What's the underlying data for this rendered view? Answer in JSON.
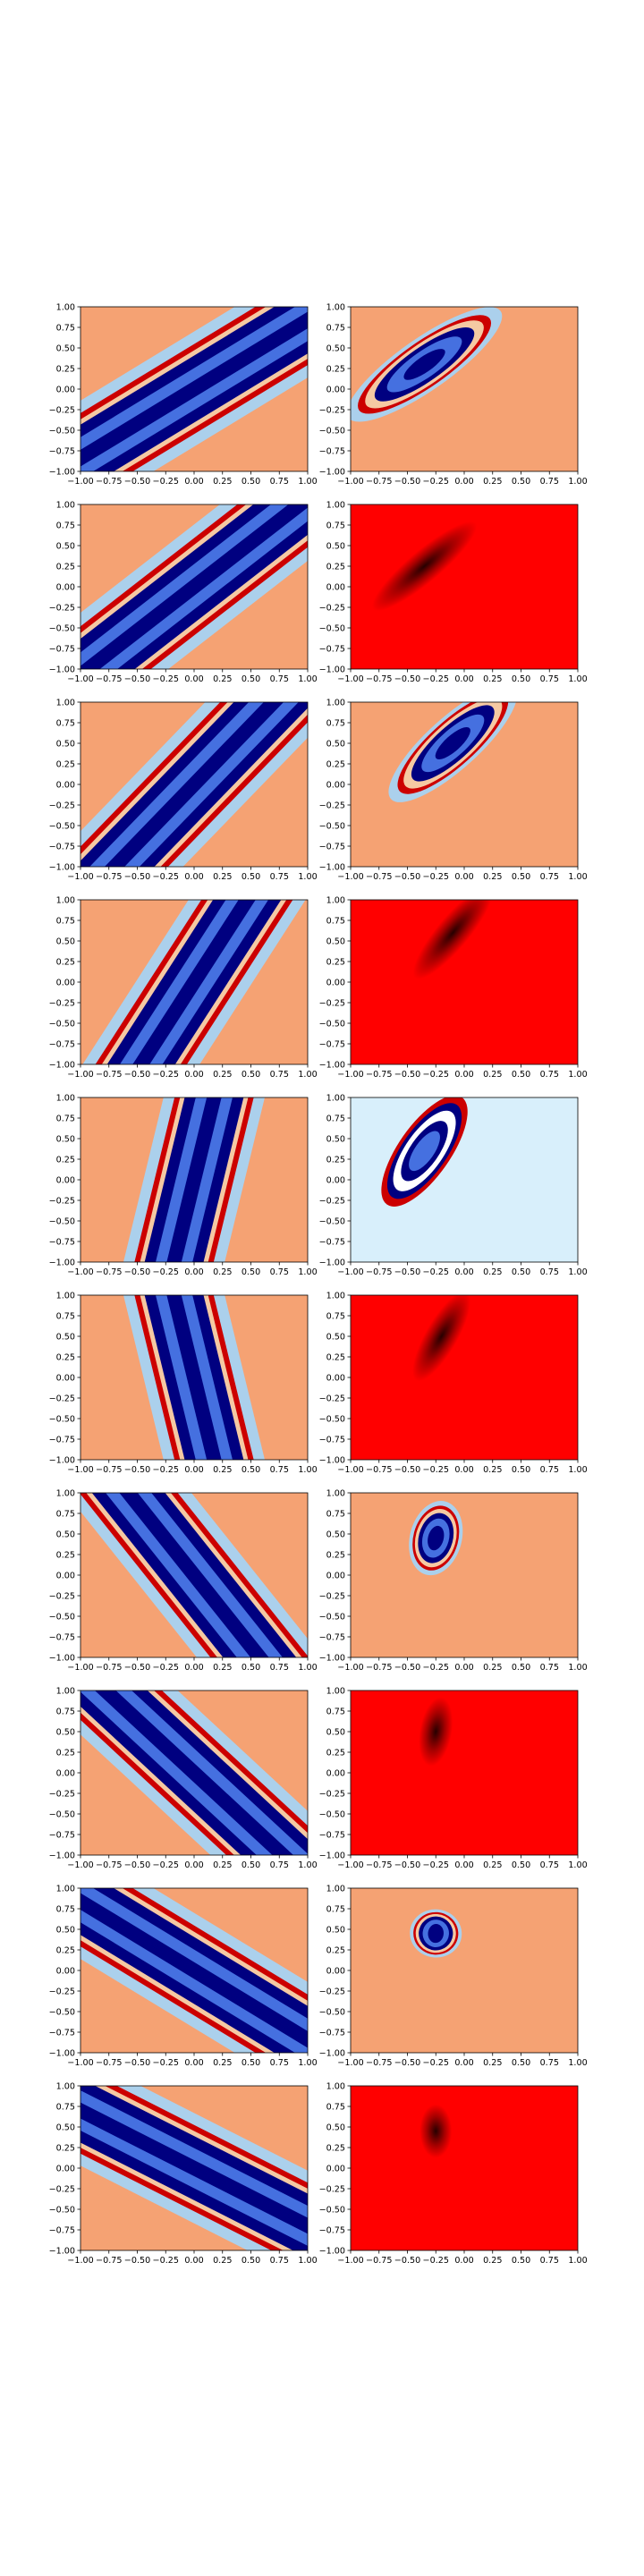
{
  "figure": {
    "background": "#ffffff",
    "rows": 10,
    "cols": 2,
    "colors": {
      "frame": "#000000",
      "text": "#000000",
      "contour_bands": [
        "#f5a273",
        "#abd0ec",
        "#4570e0",
        "#000080",
        "#cc0000",
        "#f5c9a3",
        "#ffffff",
        "#d8effb"
      ],
      "heat_background": "#ff0000",
      "heat_peak": "#000000"
    }
  },
  "chart_data": [
    {
      "panel": "r1-left",
      "type": "heatmap",
      "style": "contour_bands",
      "surface": "ridge",
      "orientation_deg": 40,
      "x": {
        "ticks": [
          "−1.00",
          "−0.75",
          "−0.50",
          "−0.25",
          "0.00",
          "0.25",
          "0.50",
          "0.75",
          "1.00"
        ],
        "lim": [
          -1,
          1
        ]
      },
      "y": {
        "ticks": [
          "−1.00",
          "−0.75",
          "−0.50",
          "−0.25",
          "0.00",
          "0.25",
          "0.50",
          "0.75",
          "1.00"
        ],
        "lim": [
          -1,
          1
        ]
      }
    },
    {
      "panel": "r1-right",
      "type": "heatmap",
      "style": "contour_bands",
      "surface": "gaussian_ellipse",
      "center": [
        -0.35,
        0.3
      ],
      "orientation_deg": 35,
      "x": {
        "ticks": [
          "−1.00",
          "−0.75",
          "−0.50",
          "−0.25",
          "0.00",
          "0.25",
          "0.50",
          "0.75",
          "1.00"
        ],
        "lim": [
          -1,
          1
        ]
      },
      "y": {
        "ticks": [
          "−1.00",
          "−0.75",
          "−0.50",
          "−0.25",
          "0.00",
          "0.25",
          "0.50",
          "0.75",
          "1.00"
        ],
        "lim": [
          -1,
          1
        ]
      }
    },
    {
      "panel": "r2-left",
      "type": "heatmap",
      "style": "contour_bands",
      "surface": "ridge",
      "orientation_deg": 47,
      "x": {
        "ticks": [
          "−1.00",
          "−0.75",
          "−0.50",
          "−0.25",
          "0.00",
          "0.25",
          "0.50",
          "0.75",
          "1.00"
        ],
        "lim": [
          -1,
          1
        ]
      },
      "y": {
        "ticks": [
          "−1.00",
          "−0.75",
          "−0.50",
          "−0.25",
          "0.00",
          "0.25",
          "0.50",
          "0.75",
          "1.00"
        ],
        "lim": [
          -1,
          1
        ]
      }
    },
    {
      "panel": "r2-right",
      "type": "heatmap",
      "style": "red_density",
      "surface": "gaussian_ellipse",
      "center": [
        -0.35,
        0.25
      ],
      "orientation_deg": 40,
      "x": {
        "ticks": [
          "−1.00",
          "−0.75",
          "−0.50",
          "−0.25",
          "0.00",
          "0.25",
          "0.50",
          "0.75",
          "1.00"
        ],
        "lim": [
          -1,
          1
        ]
      },
      "y": {
        "ticks": [
          "−1.00",
          "−0.75",
          "−0.50",
          "−0.25",
          "0.00",
          "0.25",
          "0.50",
          "0.75",
          "1.00"
        ],
        "lim": [
          -1,
          1
        ]
      }
    },
    {
      "panel": "r3-left",
      "type": "heatmap",
      "style": "contour_bands",
      "surface": "ridge",
      "orientation_deg": 55,
      "x": {
        "ticks": [
          "−1.00",
          "−0.75",
          "−0.50",
          "−0.25",
          "0.00",
          "0.25",
          "0.50",
          "0.75",
          "1.00"
        ],
        "lim": [
          -1,
          1
        ]
      },
      "y": {
        "ticks": [
          "−1.00",
          "−0.75",
          "−0.50",
          "−0.25",
          "0.00",
          "0.25",
          "0.50",
          "0.75",
          "1.00"
        ],
        "lim": [
          -1,
          1
        ]
      }
    },
    {
      "panel": "r3-right",
      "type": "heatmap",
      "style": "contour_bands",
      "surface": "gaussian_ellipse",
      "center": [
        -0.1,
        0.5
      ],
      "orientation_deg": 42,
      "x": {
        "ticks": [
          "−1.00",
          "−0.75",
          "−0.50",
          "−0.25",
          "0.00",
          "0.25",
          "0.50",
          "0.75",
          "1.00"
        ],
        "lim": [
          -1,
          1
        ]
      },
      "y": {
        "ticks": [
          "−1.00",
          "−0.75",
          "−0.50",
          "−0.25",
          "0.00",
          "0.25",
          "0.50",
          "0.75",
          "1.00"
        ],
        "lim": [
          -1,
          1
        ]
      }
    },
    {
      "panel": "r4-left",
      "type": "heatmap",
      "style": "contour_bands",
      "surface": "ridge",
      "orientation_deg": 65,
      "x": {
        "ticks": [
          "−1.00",
          "−0.75",
          "−0.50",
          "−0.25",
          "0.00",
          "0.25",
          "0.50",
          "0.75",
          "1.00"
        ],
        "lim": [
          -1,
          1
        ]
      },
      "y": {
        "ticks": [
          "−1.00",
          "−0.75",
          "−0.50",
          "−0.25",
          "0.00",
          "0.25",
          "0.50",
          "0.75",
          "1.00"
        ],
        "lim": [
          -1,
          1
        ]
      }
    },
    {
      "panel": "r4-right",
      "type": "heatmap",
      "style": "red_density",
      "surface": "gaussian_ellipse",
      "center": [
        -0.1,
        0.6
      ],
      "orientation_deg": 50,
      "x": {
        "ticks": [
          "−1.00",
          "−0.75",
          "−0.50",
          "−0.25",
          "0.00",
          "0.25",
          "0.50",
          "0.75",
          "1.00"
        ],
        "lim": [
          -1,
          1
        ]
      },
      "y": {
        "ticks": [
          "−1.00",
          "−0.75",
          "−0.50",
          "−0.25",
          "0.00",
          "0.25",
          "0.50",
          "0.75",
          "1.00"
        ],
        "lim": [
          -1,
          1
        ]
      }
    },
    {
      "panel": "r5-left",
      "type": "heatmap",
      "style": "contour_bands",
      "surface": "ridge",
      "orientation_deg": 80,
      "x": {
        "ticks": [
          "−1.00",
          "−0.75",
          "−0.50",
          "−0.25",
          "0.00",
          "0.25",
          "0.50",
          "0.75",
          "1.00"
        ],
        "lim": [
          -1,
          1
        ]
      },
      "y": {
        "ticks": [
          "−1.00",
          "−0.75",
          "−0.50",
          "−0.25",
          "0.00",
          "0.25",
          "0.50",
          "0.75",
          "1.00"
        ],
        "lim": [
          -1,
          1
        ]
      }
    },
    {
      "panel": "r5-right",
      "type": "heatmap",
      "style": "contour_bands_light",
      "surface": "gaussian_ellipse",
      "center": [
        -0.35,
        0.35
      ],
      "orientation_deg": 55,
      "x": {
        "ticks": [
          "−1.00",
          "−0.75",
          "−0.50",
          "−0.25",
          "0.00",
          "0.25",
          "0.50",
          "0.75",
          "1.00"
        ],
        "lim": [
          -1,
          1
        ]
      },
      "y": {
        "ticks": [
          "−1.00",
          "−0.75",
          "−0.50",
          "−0.25",
          "0.00",
          "0.25",
          "0.50",
          "0.75",
          "1.00"
        ],
        "lim": [
          -1,
          1
        ]
      }
    },
    {
      "panel": "r6-left",
      "type": "heatmap",
      "style": "contour_bands",
      "surface": "ridge",
      "orientation_deg": 100,
      "x": {
        "ticks": [
          "−1.00",
          "−0.75",
          "−0.50",
          "−0.25",
          "0.00",
          "0.25",
          "0.50",
          "0.75",
          "1.00"
        ],
        "lim": [
          -1,
          1
        ]
      },
      "y": {
        "ticks": [
          "−1.00",
          "−0.75",
          "−0.50",
          "−0.25",
          "0.00",
          "0.25",
          "0.50",
          "0.75",
          "1.00"
        ],
        "lim": [
          -1,
          1
        ]
      }
    },
    {
      "panel": "r6-right",
      "type": "heatmap",
      "style": "red_density",
      "surface": "gaussian_ellipse",
      "center": [
        -0.2,
        0.5
      ],
      "orientation_deg": 60,
      "x": {
        "ticks": [
          "−1.00",
          "−0.75",
          "−0.50",
          "−0.25",
          "0.00",
          "0.25",
          "0.50",
          "0.75",
          "1.00"
        ],
        "lim": [
          -1,
          1
        ]
      },
      "y": {
        "ticks": [
          "−1.00",
          "−0.75",
          "−0.50",
          "−0.25",
          "0.00",
          "0.25",
          "0.50",
          "0.75",
          "1.00"
        ],
        "lim": [
          -1,
          1
        ]
      }
    },
    {
      "panel": "r7-left",
      "type": "heatmap",
      "style": "contour_bands",
      "surface": "ridge",
      "orientation_deg": 120,
      "x": {
        "ticks": [
          "−1.00",
          "−0.75",
          "−0.50",
          "−0.25",
          "0.00",
          "0.25",
          "0.50",
          "0.75",
          "1.00"
        ],
        "lim": [
          -1,
          1
        ]
      },
      "y": {
        "ticks": [
          "−1.00",
          "−0.75",
          "−0.50",
          "−0.25",
          "0.00",
          "0.25",
          "0.50",
          "0.75",
          "1.00"
        ],
        "lim": [
          -1,
          1
        ]
      }
    },
    {
      "panel": "r7-right",
      "type": "heatmap",
      "style": "contour_bands",
      "surface": "gaussian_ellipse",
      "center": [
        -0.25,
        0.45
      ],
      "orientation_deg": 75,
      "x": {
        "ticks": [
          "−1.00",
          "−0.75",
          "−0.50",
          "−0.25",
          "0.00",
          "0.25",
          "0.50",
          "0.75",
          "1.00"
        ],
        "lim": [
          -1,
          1
        ]
      },
      "y": {
        "ticks": [
          "−1.00",
          "−0.75",
          "−0.50",
          "−0.25",
          "0.00",
          "0.25",
          "0.50",
          "0.75",
          "1.00"
        ],
        "lim": [
          -1,
          1
        ]
      }
    },
    {
      "panel": "r8-left",
      "type": "heatmap",
      "style": "contour_bands",
      "surface": "ridge",
      "orientation_deg": 128,
      "x": {
        "ticks": [
          "−1.00",
          "−0.75",
          "−0.50",
          "−0.25",
          "0.00",
          "0.25",
          "0.50",
          "0.75",
          "1.00"
        ],
        "lim": [
          -1,
          1
        ]
      },
      "y": {
        "ticks": [
          "−1.00",
          "−0.75",
          "−0.50",
          "−0.25",
          "0.00",
          "0.25",
          "0.50",
          "0.75",
          "1.00"
        ],
        "lim": [
          -1,
          1
        ]
      }
    },
    {
      "panel": "r8-right",
      "type": "heatmap",
      "style": "red_density",
      "surface": "gaussian_ellipse",
      "center": [
        -0.25,
        0.5
      ],
      "orientation_deg": 80,
      "x": {
        "ticks": [
          "−1.00",
          "−0.75",
          "−0.50",
          "−0.25",
          "0.00",
          "0.25",
          "0.50",
          "0.75",
          "1.00"
        ],
        "lim": [
          -1,
          1
        ]
      },
      "y": {
        "ticks": [
          "−1.00",
          "−0.75",
          "−0.50",
          "−0.25",
          "0.00",
          "0.25",
          "0.50",
          "0.75",
          "1.00"
        ],
        "lim": [
          -1,
          1
        ]
      }
    },
    {
      "panel": "r9-left",
      "type": "heatmap",
      "style": "contour_bands",
      "surface": "ridge",
      "orientation_deg": 140,
      "x": {
        "ticks": [
          "−1.00",
          "−0.75",
          "−0.50",
          "−0.25",
          "0.00",
          "0.25",
          "0.50",
          "0.75",
          "1.00"
        ],
        "lim": [
          -1,
          1
        ]
      },
      "y": {
        "ticks": [
          "−1.00",
          "−0.75",
          "−0.50",
          "−0.25",
          "0.00",
          "0.25",
          "0.50",
          "0.75",
          "1.00"
        ],
        "lim": [
          -1,
          1
        ]
      }
    },
    {
      "panel": "r9-right",
      "type": "heatmap",
      "style": "contour_bands",
      "surface": "gaussian_ellipse",
      "center": [
        -0.25,
        0.45
      ],
      "orientation_deg": 85,
      "x": {
        "ticks": [
          "−1.00",
          "−0.75",
          "−0.50",
          "−0.25",
          "0.00",
          "0.25",
          "0.50",
          "0.75",
          "1.00"
        ],
        "lim": [
          -1,
          1
        ]
      },
      "y": {
        "ticks": [
          "−1.00",
          "−0.75",
          "−0.50",
          "−0.25",
          "0.00",
          "0.25",
          "0.50",
          "0.75",
          "1.00"
        ],
        "lim": [
          -1,
          1
        ]
      }
    },
    {
      "panel": "r10-left",
      "type": "heatmap",
      "style": "contour_bands",
      "surface": "ridge",
      "orientation_deg": 145,
      "x": {
        "ticks": [
          "−1.00",
          "−0.75",
          "−0.50",
          "−0.25",
          "0.00",
          "0.25",
          "0.50",
          "0.75",
          "1.00"
        ],
        "lim": [
          -1,
          1
        ]
      },
      "y": {
        "ticks": [
          "−1.00",
          "−0.75",
          "−0.50",
          "−0.25",
          "0.00",
          "0.25",
          "0.50",
          "0.75",
          "1.00"
        ],
        "lim": [
          -1,
          1
        ]
      }
    },
    {
      "panel": "r10-right",
      "type": "heatmap",
      "style": "red_density",
      "surface": "gaussian_ellipse",
      "center": [
        -0.25,
        0.45
      ],
      "orientation_deg": 90,
      "x": {
        "ticks": [
          "−1.00",
          "−0.75",
          "−0.50",
          "−0.25",
          "0.00",
          "0.25",
          "0.50",
          "0.75",
          "1.00"
        ],
        "lim": [
          -1,
          1
        ]
      },
      "y": {
        "ticks": [
          "−1.00",
          "−0.75",
          "−0.50",
          "−0.25",
          "0.00",
          "0.25",
          "0.50",
          "0.75",
          "1.00"
        ],
        "lim": [
          -1,
          1
        ]
      }
    }
  ]
}
